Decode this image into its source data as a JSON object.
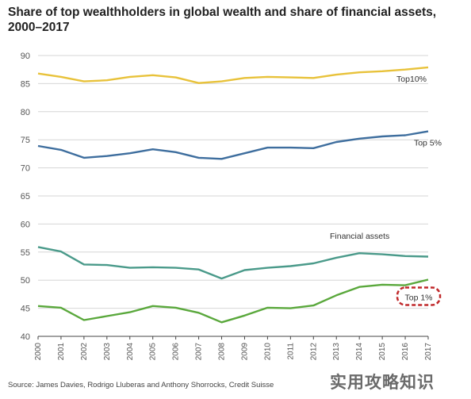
{
  "title": "Share of top wealthholders in global wealth and share of financial assets, 2000–2017",
  "source": "Source: James Davies, Rodrigo Lluberas and Anthony Shorrocks, Credit Suisse",
  "watermark": "实用攻略知识",
  "chart_data": {
    "type": "line",
    "xlabel": "",
    "ylabel": "",
    "ylim": [
      40,
      90
    ],
    "yticks": [
      40,
      45,
      50,
      55,
      60,
      65,
      70,
      75,
      80,
      85,
      90
    ],
    "grid": false,
    "x": [
      "2000",
      "2001",
      "2002",
      "2003",
      "2004",
      "2005",
      "2006",
      "2007",
      "2008",
      "2009",
      "2010",
      "2011",
      "2012",
      "2013",
      "2014",
      "2015",
      "2016",
      "2017"
    ],
    "series": [
      {
        "name": "Top10%",
        "color": "#e8c23a",
        "values": [
          86.8,
          86.2,
          85.4,
          85.6,
          86.2,
          86.5,
          86.1,
          85.1,
          85.4,
          86.0,
          86.2,
          86.1,
          86.0,
          86.6,
          87.0,
          87.2,
          87.5,
          87.9
        ]
      },
      {
        "name": "Top 5%",
        "color": "#3e6e9e",
        "values": [
          73.9,
          73.2,
          71.8,
          72.1,
          72.6,
          73.3,
          72.8,
          71.8,
          71.6,
          72.6,
          73.6,
          73.6,
          73.5,
          74.6,
          75.2,
          75.6,
          75.8,
          76.5
        ]
      },
      {
        "name": "Financial assets",
        "color": "#4a9a8a",
        "values": [
          55.9,
          55.1,
          52.8,
          52.7,
          52.2,
          52.3,
          52.2,
          51.9,
          50.3,
          51.8,
          52.2,
          52.5,
          53.0,
          54.0,
          54.8,
          54.6,
          54.3,
          54.2
        ]
      },
      {
        "name": "Top 1%",
        "color": "#5aa83c",
        "values": [
          45.4,
          45.1,
          42.9,
          43.6,
          44.3,
          45.4,
          45.1,
          44.2,
          42.5,
          43.7,
          45.1,
          45.0,
          45.5,
          47.3,
          48.8,
          49.2,
          49.1,
          50.1
        ]
      }
    ],
    "annotations": [
      {
        "series": "Top10%",
        "text": "Top10%"
      },
      {
        "series": "Top 5%",
        "text": "Top 5%"
      },
      {
        "series": "Financial assets",
        "text": "Financial assets"
      },
      {
        "series": "Top 1%",
        "text": "Top 1%",
        "highlight_color": "#c0292b"
      }
    ]
  }
}
